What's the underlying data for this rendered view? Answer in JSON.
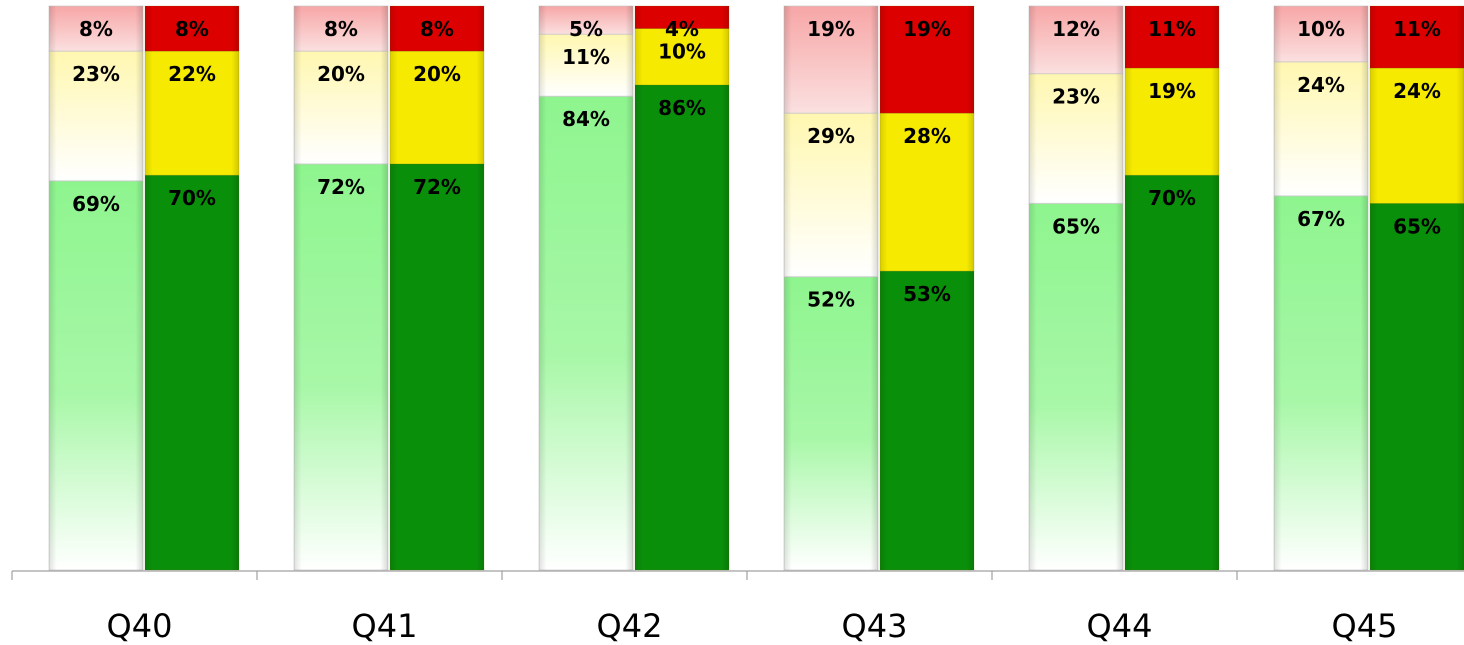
{
  "chart_data": {
    "type": "bar",
    "stacked": true,
    "percent_stacked": true,
    "categories": [
      "Q40",
      "Q41",
      "Q42",
      "Q43",
      "Q44",
      "Q45"
    ],
    "bars_per_category": 2,
    "series": [
      {
        "values_pale_bar": [
          69,
          72,
          84,
          52,
          65,
          67
        ],
        "values_solid_bar": [
          70,
          72,
          86,
          53,
          70,
          65
        ],
        "labels_pale_bar": [
          "69%",
          "72%",
          "84%",
          "52%",
          "65%",
          "67%"
        ],
        "labels_solid_bar": [
          "70%",
          "72%",
          "86%",
          "53%",
          "70%",
          "65%"
        ],
        "color_pale": "#8ef58e",
        "color_solid": "#0a8f0a"
      },
      {
        "values_pale_bar": [
          23,
          20,
          11,
          29,
          23,
          24
        ],
        "values_solid_bar": [
          22,
          20,
          10,
          28,
          19,
          24
        ],
        "labels_pale_bar": [
          "23%",
          "20%",
          "11%",
          "29%",
          "23%",
          "24%"
        ],
        "labels_solid_bar": [
          "22%",
          "20%",
          "10%",
          "28%",
          "19%",
          "24%"
        ],
        "color_pale": "#fff7b0",
        "color_solid": "#f6ea00"
      },
      {
        "values_pale_bar": [
          8,
          8,
          5,
          19,
          12,
          10
        ],
        "values_solid_bar": [
          8,
          8,
          4,
          19,
          11,
          11
        ],
        "labels_pale_bar": [
          "8%",
          "8%",
          "5%",
          "19%",
          "12%",
          "10%"
        ],
        "labels_solid_bar": [
          "8%",
          "8%",
          "4%",
          "19%",
          "11%",
          "11%"
        ],
        "color_pale": "#f7a6a6",
        "color_solid": "#dd0000"
      }
    ],
    "ylim": [
      0,
      100
    ],
    "grid": false,
    "legend": "none",
    "title": "",
    "xlabel": "",
    "ylabel": ""
  }
}
